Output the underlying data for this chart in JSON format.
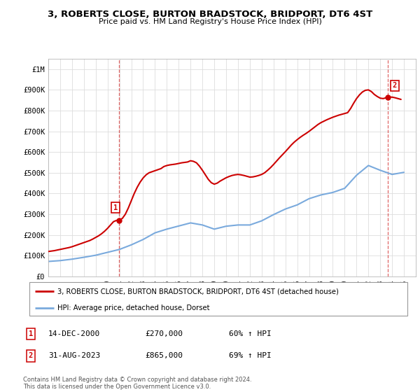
{
  "title": "3, ROBERTS CLOSE, BURTON BRADSTOCK, BRIDPORT, DT6 4ST",
  "subtitle": "Price paid vs. HM Land Registry's House Price Index (HPI)",
  "legend_line1": "3, ROBERTS CLOSE, BURTON BRADSTOCK, BRIDPORT, DT6 4ST (detached house)",
  "legend_line2": "HPI: Average price, detached house, Dorset",
  "annotation1_label": "1",
  "annotation1_date": "14-DEC-2000",
  "annotation1_price": "£270,000",
  "annotation1_hpi": "60% ↑ HPI",
  "annotation2_label": "2",
  "annotation2_date": "31-AUG-2023",
  "annotation2_price": "£865,000",
  "annotation2_hpi": "69% ↑ HPI",
  "footer": "Contains HM Land Registry data © Crown copyright and database right 2024.\nThis data is licensed under the Open Government Licence v3.0.",
  "hpi_color": "#7aaadd",
  "price_color": "#cc0000",
  "grid_color": "#dddddd",
  "ylim": [
    0,
    1050000
  ],
  "yticks": [
    0,
    100000,
    200000,
    300000,
    400000,
    500000,
    600000,
    700000,
    800000,
    900000,
    1000000
  ],
  "ytick_labels": [
    "£0",
    "£100K",
    "£200K",
    "£300K",
    "£400K",
    "£500K",
    "£600K",
    "£700K",
    "£800K",
    "£900K",
    "£1M"
  ],
  "hpi_x": [
    1995,
    1996,
    1997,
    1998,
    1999,
    2000,
    2001,
    2002,
    2003,
    2004,
    2005,
    2006,
    2007,
    2008,
    2009,
    2010,
    2011,
    2012,
    2013,
    2014,
    2015,
    2016,
    2017,
    2018,
    2019,
    2020,
    2021,
    2022,
    2023,
    2024,
    2025
  ],
  "hpi_y": [
    72000,
    76000,
    83000,
    92000,
    102000,
    116000,
    130000,
    152000,
    178000,
    210000,
    228000,
    243000,
    258000,
    248000,
    228000,
    242000,
    248000,
    248000,
    268000,
    298000,
    325000,
    345000,
    375000,
    393000,
    405000,
    425000,
    488000,
    535000,
    512000,
    492000,
    502000
  ],
  "price_x": [
    1995.0,
    1995.25,
    1995.5,
    1995.75,
    1996.0,
    1996.25,
    1996.5,
    1996.75,
    1997.0,
    1997.25,
    1997.5,
    1997.75,
    1998.0,
    1998.25,
    1998.5,
    1998.75,
    1999.0,
    1999.25,
    1999.5,
    1999.75,
    2000.0,
    2000.25,
    2000.5,
    2000.75,
    2000.958,
    2001.25,
    2001.5,
    2001.75,
    2002.0,
    2002.25,
    2002.5,
    2002.75,
    2003.0,
    2003.25,
    2003.5,
    2003.75,
    2004.0,
    2004.25,
    2004.5,
    2004.75,
    2005.0,
    2005.25,
    2005.5,
    2005.75,
    2006.0,
    2006.25,
    2006.5,
    2006.75,
    2007.0,
    2007.25,
    2007.5,
    2007.75,
    2008.0,
    2008.25,
    2008.5,
    2008.75,
    2009.0,
    2009.25,
    2009.5,
    2009.75,
    2010.0,
    2010.25,
    2010.5,
    2010.75,
    2011.0,
    2011.25,
    2011.5,
    2011.75,
    2012.0,
    2012.25,
    2012.5,
    2012.75,
    2013.0,
    2013.25,
    2013.5,
    2013.75,
    2014.0,
    2014.25,
    2014.5,
    2014.75,
    2015.0,
    2015.25,
    2015.5,
    2015.75,
    2016.0,
    2016.25,
    2016.5,
    2016.75,
    2017.0,
    2017.25,
    2017.5,
    2017.75,
    2018.0,
    2018.25,
    2018.5,
    2018.75,
    2019.0,
    2019.25,
    2019.5,
    2019.75,
    2020.0,
    2020.25,
    2020.5,
    2020.75,
    2021.0,
    2021.25,
    2021.5,
    2021.75,
    2022.0,
    2022.25,
    2022.5,
    2022.75,
    2023.0,
    2023.25,
    2023.5,
    2023.667,
    2024.0,
    2024.25,
    2024.5,
    2024.75
  ],
  "price_y": [
    120000,
    122000,
    124000,
    127000,
    130000,
    133000,
    136000,
    139000,
    143000,
    148000,
    153000,
    158000,
    163000,
    168000,
    173000,
    180000,
    188000,
    196000,
    206000,
    218000,
    232000,
    248000,
    264000,
    270000,
    270000,
    280000,
    300000,
    330000,
    365000,
    400000,
    430000,
    455000,
    475000,
    490000,
    500000,
    505000,
    510000,
    515000,
    520000,
    530000,
    535000,
    538000,
    540000,
    542000,
    545000,
    548000,
    550000,
    552000,
    558000,
    555000,
    548000,
    532000,
    512000,
    490000,
    468000,
    452000,
    445000,
    450000,
    460000,
    468000,
    476000,
    482000,
    487000,
    490000,
    492000,
    490000,
    487000,
    483000,
    479000,
    480000,
    483000,
    487000,
    492000,
    500000,
    512000,
    525000,
    540000,
    556000,
    572000,
    587000,
    602000,
    618000,
    634000,
    648000,
    660000,
    671000,
    681000,
    690000,
    700000,
    711000,
    722000,
    733000,
    742000,
    749000,
    756000,
    762000,
    768000,
    773000,
    778000,
    782000,
    786000,
    790000,
    810000,
    835000,
    858000,
    876000,
    890000,
    898000,
    900000,
    892000,
    878000,
    868000,
    860000,
    858000,
    862000,
    865000,
    865000,
    862000,
    858000,
    854000
  ],
  "sale1_x": 2000.958,
  "sale1_y": 270000,
  "sale2_x": 2023.667,
  "sale2_y": 865000,
  "xmin": 1995,
  "xmax": 2026,
  "xtick_years": [
    1995,
    1996,
    1997,
    1998,
    1999,
    2000,
    2001,
    2002,
    2003,
    2004,
    2005,
    2006,
    2007,
    2008,
    2009,
    2010,
    2011,
    2012,
    2013,
    2014,
    2015,
    2016,
    2017,
    2018,
    2019,
    2020,
    2021,
    2022,
    2023,
    2024,
    2025
  ]
}
